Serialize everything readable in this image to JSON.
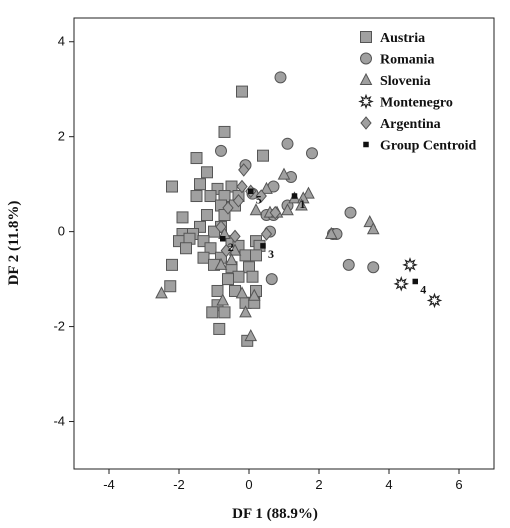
{
  "chart_data": {
    "type": "scatter",
    "title": "",
    "xlabel": "DF 1 (88.9%)",
    "ylabel": "DF 2 (11.8%)",
    "xlim": [
      -5,
      7
    ],
    "ylim": [
      -5,
      4.5
    ],
    "xticks": [
      -4,
      -2,
      0,
      2,
      4,
      6
    ],
    "yticks": [
      -4,
      -2,
      0,
      2,
      4
    ],
    "legend_position": "top-right",
    "marker_fill": "#a0a0a0",
    "marker_stroke": "#555555",
    "series": [
      {
        "name": "Austria",
        "marker": "square",
        "points": [
          [
            -0.2,
            2.95
          ],
          [
            -0.7,
            2.1
          ],
          [
            0.4,
            1.6
          ],
          [
            -1.5,
            1.55
          ],
          [
            -1.2,
            1.25
          ],
          [
            -2.2,
            0.95
          ],
          [
            -1.4,
            1.0
          ],
          [
            -0.5,
            0.95
          ],
          [
            -0.9,
            0.9
          ],
          [
            -1.5,
            0.75
          ],
          [
            -1.1,
            0.75
          ],
          [
            -0.7,
            0.75
          ],
          [
            -0.3,
            0.75
          ],
          [
            -0.8,
            0.55
          ],
          [
            -0.4,
            0.55
          ],
          [
            -1.9,
            0.3
          ],
          [
            -1.2,
            0.35
          ],
          [
            -0.7,
            0.35
          ],
          [
            -1.4,
            0.1
          ],
          [
            -0.8,
            0.1
          ],
          [
            -1.9,
            -0.05
          ],
          [
            -1.6,
            -0.05
          ],
          [
            -1.0,
            0.0
          ],
          [
            -2.0,
            -0.2
          ],
          [
            -1.7,
            -0.15
          ],
          [
            -1.3,
            -0.2
          ],
          [
            -0.5,
            -0.2
          ],
          [
            0.2,
            -0.2
          ],
          [
            -1.8,
            -0.35
          ],
          [
            -1.1,
            -0.35
          ],
          [
            -0.3,
            -0.3
          ],
          [
            0.3,
            -0.3
          ],
          [
            -1.3,
            -0.55
          ],
          [
            -0.8,
            -0.55
          ],
          [
            -0.1,
            -0.5
          ],
          [
            0.2,
            -0.5
          ],
          [
            -2.2,
            -0.7
          ],
          [
            -1.0,
            -0.7
          ],
          [
            -0.5,
            -0.75
          ],
          [
            0.0,
            -0.75
          ],
          [
            -0.3,
            -0.95
          ],
          [
            0.1,
            -0.95
          ],
          [
            -0.6,
            -1.0
          ],
          [
            -0.9,
            -1.25
          ],
          [
            -0.4,
            -1.25
          ],
          [
            0.2,
            -1.25
          ],
          [
            -2.25,
            -1.15
          ],
          [
            -0.1,
            -1.5
          ],
          [
            -0.9,
            -1.55
          ],
          [
            0.15,
            -1.5
          ],
          [
            -1.05,
            -1.7
          ],
          [
            -0.7,
            -1.7
          ],
          [
            -0.85,
            -2.05
          ],
          [
            -0.05,
            -2.3
          ]
        ]
      },
      {
        "name": "Romania",
        "marker": "circle",
        "points": [
          [
            0.9,
            3.25
          ],
          [
            1.1,
            1.85
          ],
          [
            -0.8,
            1.7
          ],
          [
            1.8,
            1.65
          ],
          [
            -0.1,
            1.4
          ],
          [
            1.2,
            1.15
          ],
          [
            0.7,
            0.95
          ],
          [
            0.1,
            0.8
          ],
          [
            1.1,
            0.55
          ],
          [
            0.5,
            0.35
          ],
          [
            0.7,
            0.35
          ],
          [
            2.9,
            0.4
          ],
          [
            0.6,
            0.0
          ],
          [
            2.4,
            -0.05
          ],
          [
            2.5,
            -0.05
          ],
          [
            2.85,
            -0.7
          ],
          [
            3.55,
            -0.75
          ],
          [
            0.65,
            -1.0
          ]
        ]
      },
      {
        "name": "Slovenia",
        "marker": "triangle",
        "points": [
          [
            1.0,
            1.2
          ],
          [
            0.5,
            0.9
          ],
          [
            1.7,
            0.8
          ],
          [
            1.3,
            0.7
          ],
          [
            1.55,
            0.7
          ],
          [
            1.5,
            0.55
          ],
          [
            0.2,
            0.45
          ],
          [
            1.1,
            0.45
          ],
          [
            0.6,
            0.4
          ],
          [
            0.8,
            0.4
          ],
          [
            2.35,
            -0.05
          ],
          [
            3.45,
            0.2
          ],
          [
            3.55,
            0.05
          ],
          [
            -0.7,
            -0.05
          ],
          [
            -0.4,
            -0.4
          ],
          [
            -0.5,
            -0.6
          ],
          [
            -0.8,
            -0.7
          ],
          [
            -2.5,
            -1.3
          ],
          [
            -0.2,
            -1.3
          ],
          [
            0.15,
            -1.35
          ],
          [
            -0.75,
            -1.45
          ],
          [
            -0.1,
            -1.7
          ],
          [
            0.05,
            -2.2
          ]
        ]
      },
      {
        "name": "Montenegro",
        "marker": "star",
        "points": [
          [
            4.6,
            -0.7
          ],
          [
            4.35,
            -1.1
          ],
          [
            5.3,
            -1.45
          ]
        ]
      },
      {
        "name": "Argentina",
        "marker": "diamond",
        "points": [
          [
            -0.15,
            1.3
          ],
          [
            0.05,
            0.85
          ],
          [
            -0.2,
            0.95
          ],
          [
            -0.3,
            0.65
          ],
          [
            -0.6,
            0.5
          ],
          [
            0.35,
            0.75
          ],
          [
            -0.8,
            0.1
          ],
          [
            0.75,
            0.4
          ],
          [
            -0.4,
            -0.1
          ],
          [
            -0.65,
            -0.4
          ],
          [
            0.5,
            -0.05
          ]
        ]
      },
      {
        "name": "Group Centroid",
        "marker": "small-square",
        "points": [
          [
            1.3,
            0.75
          ],
          [
            -0.75,
            -0.15
          ],
          [
            0.4,
            -0.3
          ],
          [
            4.75,
            -1.05
          ],
          [
            0.05,
            0.85
          ]
        ],
        "labels": [
          "1",
          "2",
          "3",
          "4",
          "5"
        ]
      }
    ]
  }
}
